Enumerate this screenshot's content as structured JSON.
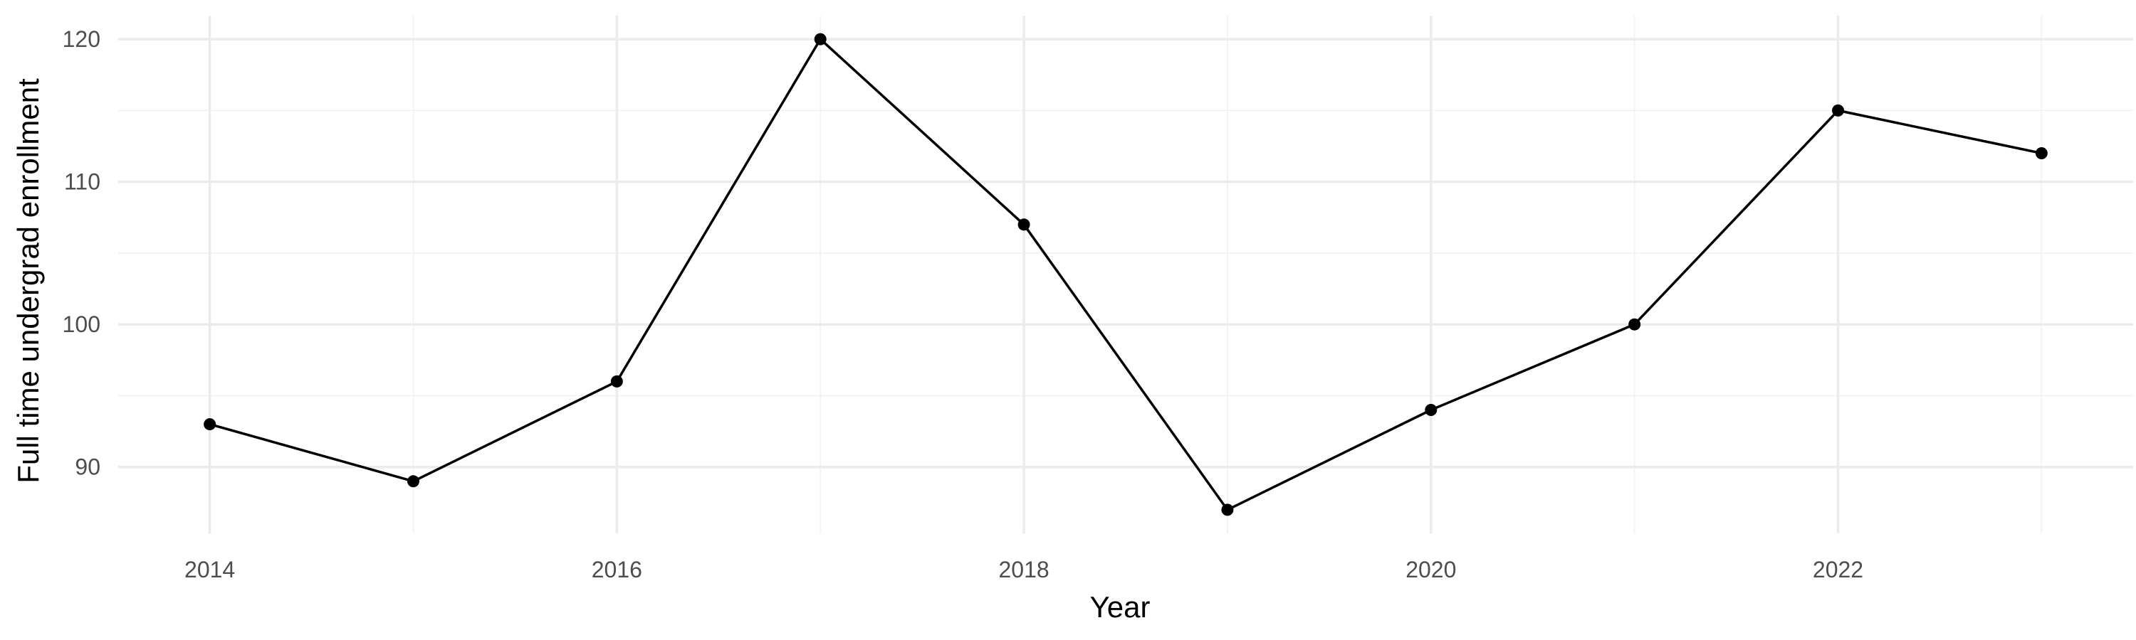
{
  "chart_data": {
    "type": "line",
    "title": "",
    "xlabel": "Year",
    "ylabel": "Full time undergrad enrollment",
    "x": [
      2014,
      2015,
      2016,
      2017,
      2018,
      2019,
      2020,
      2021,
      2022,
      2023
    ],
    "series": [
      {
        "values": [
          93,
          89,
          96,
          120,
          107,
          87,
          94,
          100,
          115,
          112
        ]
      }
    ],
    "x_ticks": [
      2014,
      2016,
      2018,
      2020,
      2022
    ],
    "y_ticks": [
      90,
      100,
      110,
      120
    ],
    "xlim": [
      2013.55,
      2023.45
    ],
    "ylim": [
      85.35,
      121.65
    ],
    "grid": true,
    "legend": "none",
    "colors": {
      "line": "#000000",
      "point": "#000000",
      "grid_major": "#ebebeb",
      "grid_minor": "#f2f2f2",
      "tick_text": "#4d4d4d"
    }
  }
}
